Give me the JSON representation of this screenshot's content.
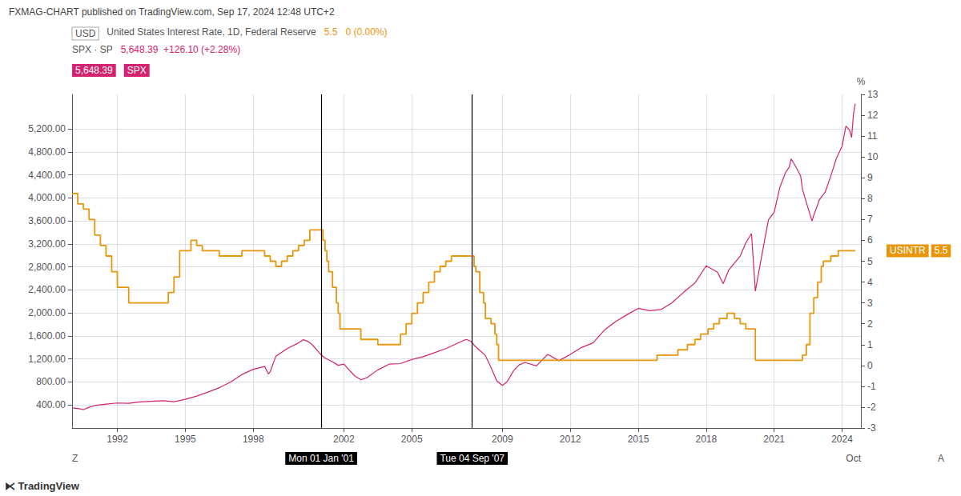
{
  "chart_data": {
    "type": "line",
    "title": "FXMAG-CHART published on TradingView.com, Sep 17, 2024 12:48 UTC+2",
    "header": [
      [
        {
          "text": "USD",
          "border": "#aaaaaa"
        },
        {
          "text": "United States Interest Rate, 1D, Federal Reserve"
        },
        {
          "text": "5.5",
          "color": "#e8960c"
        },
        {
          "text": "0 (0.00%)",
          "color": "#e8960c"
        }
      ],
      [
        {
          "text": "SPX · SP"
        },
        {
          "text": "5,648.39  +126.10 (+2.28%)",
          "color": "#d4226e"
        }
      ],
      [
        {
          "text": "5,648.39",
          "color": "#ffffff",
          "background": "#d4226e"
        },
        {
          "text": "SPX",
          "color": "#ffffff",
          "background": "#d4226e"
        }
      ]
    ],
    "xlim": [
      1990.0,
      2024.83
    ],
    "xticks": [
      1992,
      1995,
      1998,
      2002,
      2005,
      2009,
      2012,
      2015,
      2018,
      2021,
      2024
    ],
    "ylim": [
      0,
      5800
    ],
    "yticks": [
      {
        "value": 400,
        "label": "400.00"
      },
      {
        "value": 800,
        "label": "800.00"
      },
      {
        "value": 1200,
        "label": "1,200.00"
      },
      {
        "value": 1600,
        "label": "1,600.00"
      },
      {
        "value": 2000,
        "label": "2,000.00"
      },
      {
        "value": 2400,
        "label": "2,400.00"
      },
      {
        "value": 2800,
        "label": "2,800.00"
      },
      {
        "value": 3200,
        "label": "3,200.00"
      },
      {
        "value": 3600,
        "label": "3,600.00"
      },
      {
        "value": 4000,
        "label": "4,000.00"
      },
      {
        "value": 4400,
        "label": "4,400.00"
      },
      {
        "value": 4800,
        "label": "4,800.00"
      },
      {
        "value": 5200,
        "label": "5,200.00"
      }
    ],
    "y2lim": [
      -3,
      13
    ],
    "y2ticks": [
      -3,
      -2,
      -1,
      0,
      1,
      2,
      3,
      4,
      5,
      6,
      7,
      8,
      9,
      10,
      11,
      12,
      13
    ],
    "y2label": "%",
    "grid": true,
    "series": [
      {
        "type": "line",
        "color": "#d4226e",
        "x": [
          1990.0,
          1990.25,
          1990.5,
          1990.75,
          1991.0,
          1991.5,
          1992.0,
          1992.5,
          1993.0,
          1993.5,
          1994.0,
          1994.5,
          1995.0,
          1995.5,
          1996.0,
          1996.5,
          1997.0,
          1997.5,
          1998.0,
          1998.5,
          1998.67,
          1998.75,
          1999.0,
          1999.5,
          2000.0,
          2000.2,
          2000.4,
          2000.6,
          2000.8,
          2001.0,
          2001.2,
          2001.5,
          2001.75,
          2002.0,
          2002.3,
          2002.5,
          2002.75,
          2003.0,
          2003.5,
          2004.0,
          2004.5,
          2005.0,
          2005.5,
          2006.0,
          2006.5,
          2007.0,
          2007.4,
          2007.6,
          2007.67,
          2007.75,
          2008.0,
          2008.25,
          2008.5,
          2008.75,
          2009.0,
          2009.2,
          2009.5,
          2009.75,
          2010.0,
          2010.5,
          2011.0,
          2011.5,
          2012.0,
          2012.5,
          2013.0,
          2013.5,
          2014.0,
          2014.5,
          2015.0,
          2015.5,
          2016.0,
          2016.5,
          2017.0,
          2017.5,
          2018.0,
          2018.5,
          2018.75,
          2019.0,
          2019.5,
          2019.75,
          2020.0,
          2020.17,
          2020.5,
          2020.75,
          2021.0,
          2021.25,
          2021.5,
          2021.67,
          2021.75,
          2022.0,
          2022.17,
          2022.25,
          2022.5,
          2022.67,
          2022.75,
          2023.0,
          2023.25,
          2023.5,
          2023.75,
          2024.0,
          2024.17,
          2024.33,
          2024.42,
          2024.5,
          2024.58
        ],
        "values": [
          350,
          340,
          320,
          360,
          390,
          415,
          435,
          430,
          455,
          465,
          475,
          458,
          500,
          555,
          625,
          700,
          800,
          930,
          1020,
          1070,
          940,
          980,
          1250,
          1380,
          1480,
          1535,
          1510,
          1450,
          1360,
          1270,
          1210,
          1150,
          1090,
          1110,
          980,
          900,
          840,
          870,
          1010,
          1110,
          1120,
          1190,
          1240,
          1310,
          1380,
          1470,
          1540,
          1510,
          1480,
          1440,
          1350,
          1260,
          1050,
          820,
          740,
          800,
          1000,
          1100,
          1140,
          1080,
          1280,
          1170,
          1280,
          1400,
          1480,
          1700,
          1850,
          1970,
          2080,
          2040,
          2060,
          2180,
          2360,
          2520,
          2820,
          2710,
          2510,
          2750,
          2990,
          3220,
          3380,
          2380,
          3100,
          3620,
          3750,
          4180,
          4440,
          4540,
          4680,
          4510,
          4380,
          4150,
          3820,
          3600,
          3700,
          3970,
          4100,
          4380,
          4690,
          4900,
          5250,
          5180,
          5050,
          5450,
          5640
        ]
      },
      {
        "type": "step",
        "axis": "y2",
        "color": "#e8960c",
        "x": [
          1990.0,
          1990.25,
          1990.5,
          1990.75,
          1991.0,
          1991.25,
          1991.5,
          1991.75,
          1992.0,
          1992.5,
          1993.0,
          1993.5,
          1994.0,
          1994.25,
          1994.5,
          1994.75,
          1995.0,
          1995.25,
          1995.5,
          1995.75,
          1996.0,
          1996.5,
          1997.0,
          1997.5,
          1998.0,
          1998.5,
          1998.75,
          1999.0,
          1999.25,
          1999.5,
          1999.75,
          2000.0,
          2000.25,
          2000.5,
          2000.75,
          2001.0,
          2001.08,
          2001.17,
          2001.25,
          2001.33,
          2001.5,
          2001.67,
          2001.75,
          2001.83,
          2002.0,
          2002.75,
          2003.0,
          2003.5,
          2004.0,
          2004.5,
          2004.75,
          2005.0,
          2005.25,
          2005.5,
          2005.75,
          2006.0,
          2006.25,
          2006.5,
          2006.75,
          2007.0,
          2007.5,
          2007.67,
          2007.75,
          2007.83,
          2008.0,
          2008.17,
          2008.25,
          2008.5,
          2008.67,
          2008.75,
          2008.83,
          2009.0,
          2015.0,
          2015.83,
          2016.75,
          2017.17,
          2017.5,
          2017.75,
          2018.08,
          2018.33,
          2018.58,
          2018.92,
          2019.25,
          2019.5,
          2019.75,
          2020.0,
          2020.17,
          2022.0,
          2022.25,
          2022.42,
          2022.58,
          2022.75,
          2022.92,
          2023.08,
          2023.17,
          2023.5,
          2023.83,
          2024.58
        ],
        "values": [
          8.25,
          7.75,
          7.5,
          7.0,
          6.25,
          5.75,
          5.25,
          4.5,
          3.75,
          3.0,
          3.0,
          3.0,
          3.0,
          3.5,
          4.25,
          5.5,
          5.5,
          6.0,
          5.75,
          5.5,
          5.5,
          5.25,
          5.25,
          5.5,
          5.5,
          5.25,
          5.0,
          4.75,
          5.0,
          5.25,
          5.5,
          5.75,
          6.0,
          6.5,
          6.5,
          6.5,
          6.0,
          5.5,
          5.0,
          4.5,
          3.75,
          3.0,
          2.5,
          1.75,
          1.75,
          1.25,
          1.25,
          1.0,
          1.0,
          1.5,
          2.0,
          2.5,
          3.0,
          3.5,
          4.0,
          4.5,
          4.75,
          5.0,
          5.25,
          5.25,
          5.25,
          5.25,
          4.75,
          4.5,
          3.5,
          3.0,
          2.25,
          2.0,
          1.5,
          1.0,
          0.25,
          0.25,
          0.25,
          0.5,
          0.75,
          1.0,
          1.25,
          1.5,
          1.75,
          2.0,
          2.25,
          2.5,
          2.25,
          2.0,
          1.75,
          1.75,
          0.25,
          0.25,
          0.5,
          1.0,
          2.5,
          3.25,
          4.0,
          4.75,
          5.0,
          5.25,
          5.5,
          5.5
        ]
      }
    ],
    "vlines": [
      {
        "x": 2001.0,
        "label": "Mon 01 Jan '01",
        "color": "#000000"
      },
      {
        "x": 2007.67,
        "label": "Tue 04 Sep '07",
        "color": "#000000"
      }
    ],
    "y2_badges": [
      {
        "value": 5.5,
        "texts": [
          "USINTR",
          "5.5"
        ],
        "color": "#e8960c"
      }
    ],
    "axis_edge_texts": [
      "Z",
      "Oct",
      "A"
    ],
    "footer": "⧔ TradingView"
  }
}
